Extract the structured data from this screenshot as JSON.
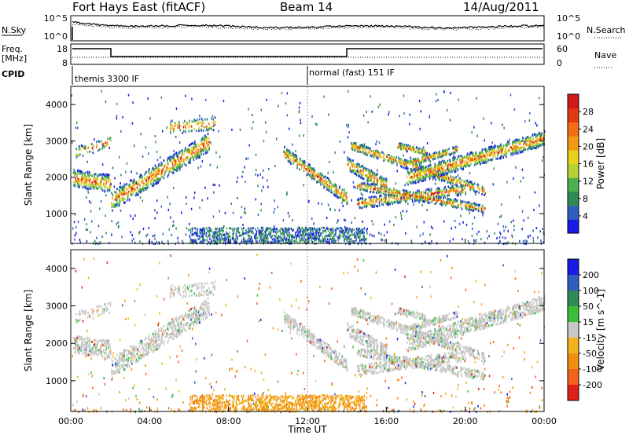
{
  "header": {
    "station": "Fort Hays East (fitACF)",
    "beam": "Beam 14",
    "date": "14/Aug/2011"
  },
  "panels": {
    "noise": {
      "left_label": "N.Sky",
      "right_label": "N.Search",
      "left_ticks": [
        "10^5",
        "10^0"
      ],
      "right_ticks": [
        "10^5",
        "10^0"
      ]
    },
    "freq": {
      "left_label_1": "Freq.",
      "left_label_2": "[MHz]",
      "right_label": "Nave",
      "left_ticks": [
        "18",
        "8"
      ],
      "right_ticks": [
        "60",
        "0"
      ]
    },
    "cpid": {
      "label": "CPID",
      "mode_1": "themis 3300 IF",
      "mode_2": "normal (fast) 151 IF"
    }
  },
  "colors": {
    "power": [
      "#1a1ae6",
      "#2e5fbf",
      "#2e8b57",
      "#4caf50",
      "#b5d334",
      "#e8d01c",
      "#f29a13",
      "#f26d13",
      "#e23a10",
      "#d21a1a"
    ],
    "velocity": [
      "#1a1ae6",
      "#2e5fbf",
      "#2e8b57",
      "#3bbf3b",
      "#c8c8c8",
      "#f2b21a",
      "#f28c13",
      "#f2621a",
      "#e0201a"
    ]
  },
  "chart_data": [
    {
      "type": "heatmap",
      "name": "Power",
      "xlabel": "",
      "ylabel": "Slant Range [km]",
      "xlim": [
        0,
        24
      ],
      "ylim": [
        180,
        4500
      ],
      "yticks": [
        1000,
        2000,
        3000,
        4000
      ],
      "colorbar": {
        "label": "Power [dB]",
        "ticks": [
          4,
          8,
          12,
          16,
          20,
          24,
          28
        ],
        "range": [
          0,
          32
        ]
      }
    },
    {
      "type": "heatmap",
      "name": "Velocity",
      "xlabel": "Time UT",
      "ylabel": "Slant Range [km]",
      "xlim": [
        0,
        24
      ],
      "ylim": [
        180,
        4500
      ],
      "yticks": [
        1000,
        2000,
        3000,
        4000
      ],
      "xticks": [
        "00:00",
        "04:00",
        "08:00",
        "12:00",
        "16:00",
        "20:00",
        "00:00"
      ],
      "colorbar": {
        "label": "Velocity [m s^-1]",
        "ticks": [
          "200",
          "100",
          "50",
          "15",
          "-15",
          "-50",
          "-100",
          "-200"
        ]
      }
    }
  ]
}
